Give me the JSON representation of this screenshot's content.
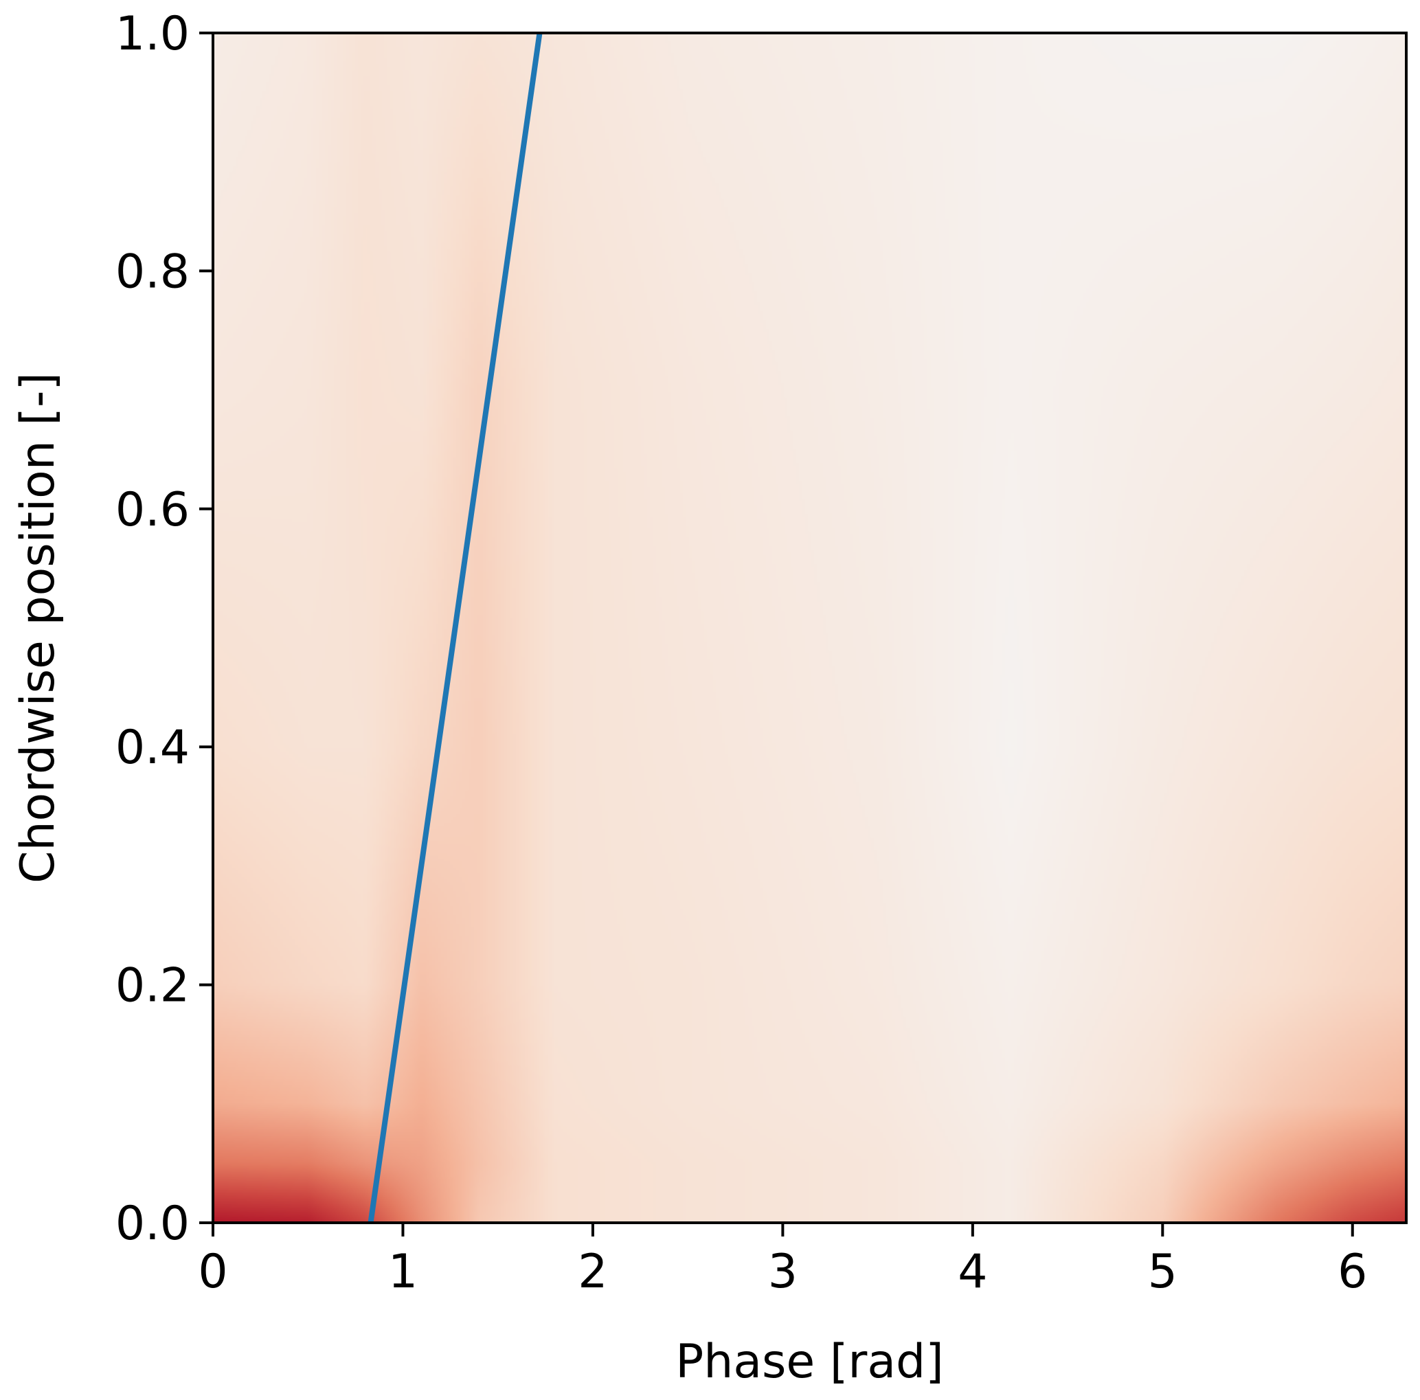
{
  "chart_data": {
    "type": "heatmap",
    "title": "",
    "xlabel": "Phase [rad]",
    "ylabel": "Chordwise position [-]",
    "xlim": [
      0,
      6.283
    ],
    "ylim": [
      0,
      1
    ],
    "xticks": [
      0,
      1,
      2,
      3,
      4,
      5,
      6
    ],
    "xtick_labels": [
      "0",
      "1",
      "2",
      "3",
      "4",
      "5",
      "6"
    ],
    "yticks": [
      0,
      0.2,
      0.4,
      0.6,
      0.8,
      1.0
    ],
    "ytick_labels": [
      "0.0",
      "0.2",
      "0.4",
      "0.6",
      "0.8",
      "1.0"
    ],
    "grid": false,
    "legend": "none",
    "colormap": "RdBu_r (white → red)",
    "colors": {
      "line": "#1f77b4",
      "low": "#f4f4f4",
      "high": "#b2182b"
    },
    "heatmap": {
      "x": [
        0,
        0.5,
        0.8,
        1.1,
        1.4,
        1.8,
        2.5,
        3.5,
        4.2,
        5.0,
        5.6,
        6.0,
        6.283
      ],
      "y": [
        0,
        0.05,
        0.1,
        0.2,
        0.4,
        0.7,
        1.0
      ],
      "z": [
        [
          1.0,
          0.97,
          0.8,
          0.5,
          0.25,
          0.14,
          0.12,
          0.1,
          0.06,
          0.22,
          0.6,
          0.78,
          0.86
        ],
        [
          0.6,
          0.58,
          0.48,
          0.42,
          0.28,
          0.14,
          0.12,
          0.1,
          0.06,
          0.18,
          0.4,
          0.52,
          0.58
        ],
        [
          0.38,
          0.34,
          0.28,
          0.36,
          0.26,
          0.13,
          0.11,
          0.09,
          0.05,
          0.12,
          0.24,
          0.3,
          0.34
        ],
        [
          0.22,
          0.18,
          0.16,
          0.28,
          0.22,
          0.12,
          0.11,
          0.08,
          0.04,
          0.09,
          0.14,
          0.18,
          0.2
        ],
        [
          0.14,
          0.12,
          0.12,
          0.18,
          0.22,
          0.12,
          0.1,
          0.07,
          0.02,
          0.07,
          0.1,
          0.12,
          0.13
        ],
        [
          0.09,
          0.1,
          0.13,
          0.12,
          0.2,
          0.12,
          0.09,
          0.06,
          0.03,
          0.05,
          0.06,
          0.07,
          0.08
        ],
        [
          0.06,
          0.08,
          0.12,
          0.1,
          0.12,
          0.1,
          0.07,
          0.05,
          0.03,
          0.02,
          0.02,
          0.03,
          0.04
        ]
      ]
    },
    "series": [
      {
        "type": "line",
        "x": [
          0.83,
          1.72
        ],
        "y": [
          0.0,
          1.0
        ]
      }
    ]
  }
}
